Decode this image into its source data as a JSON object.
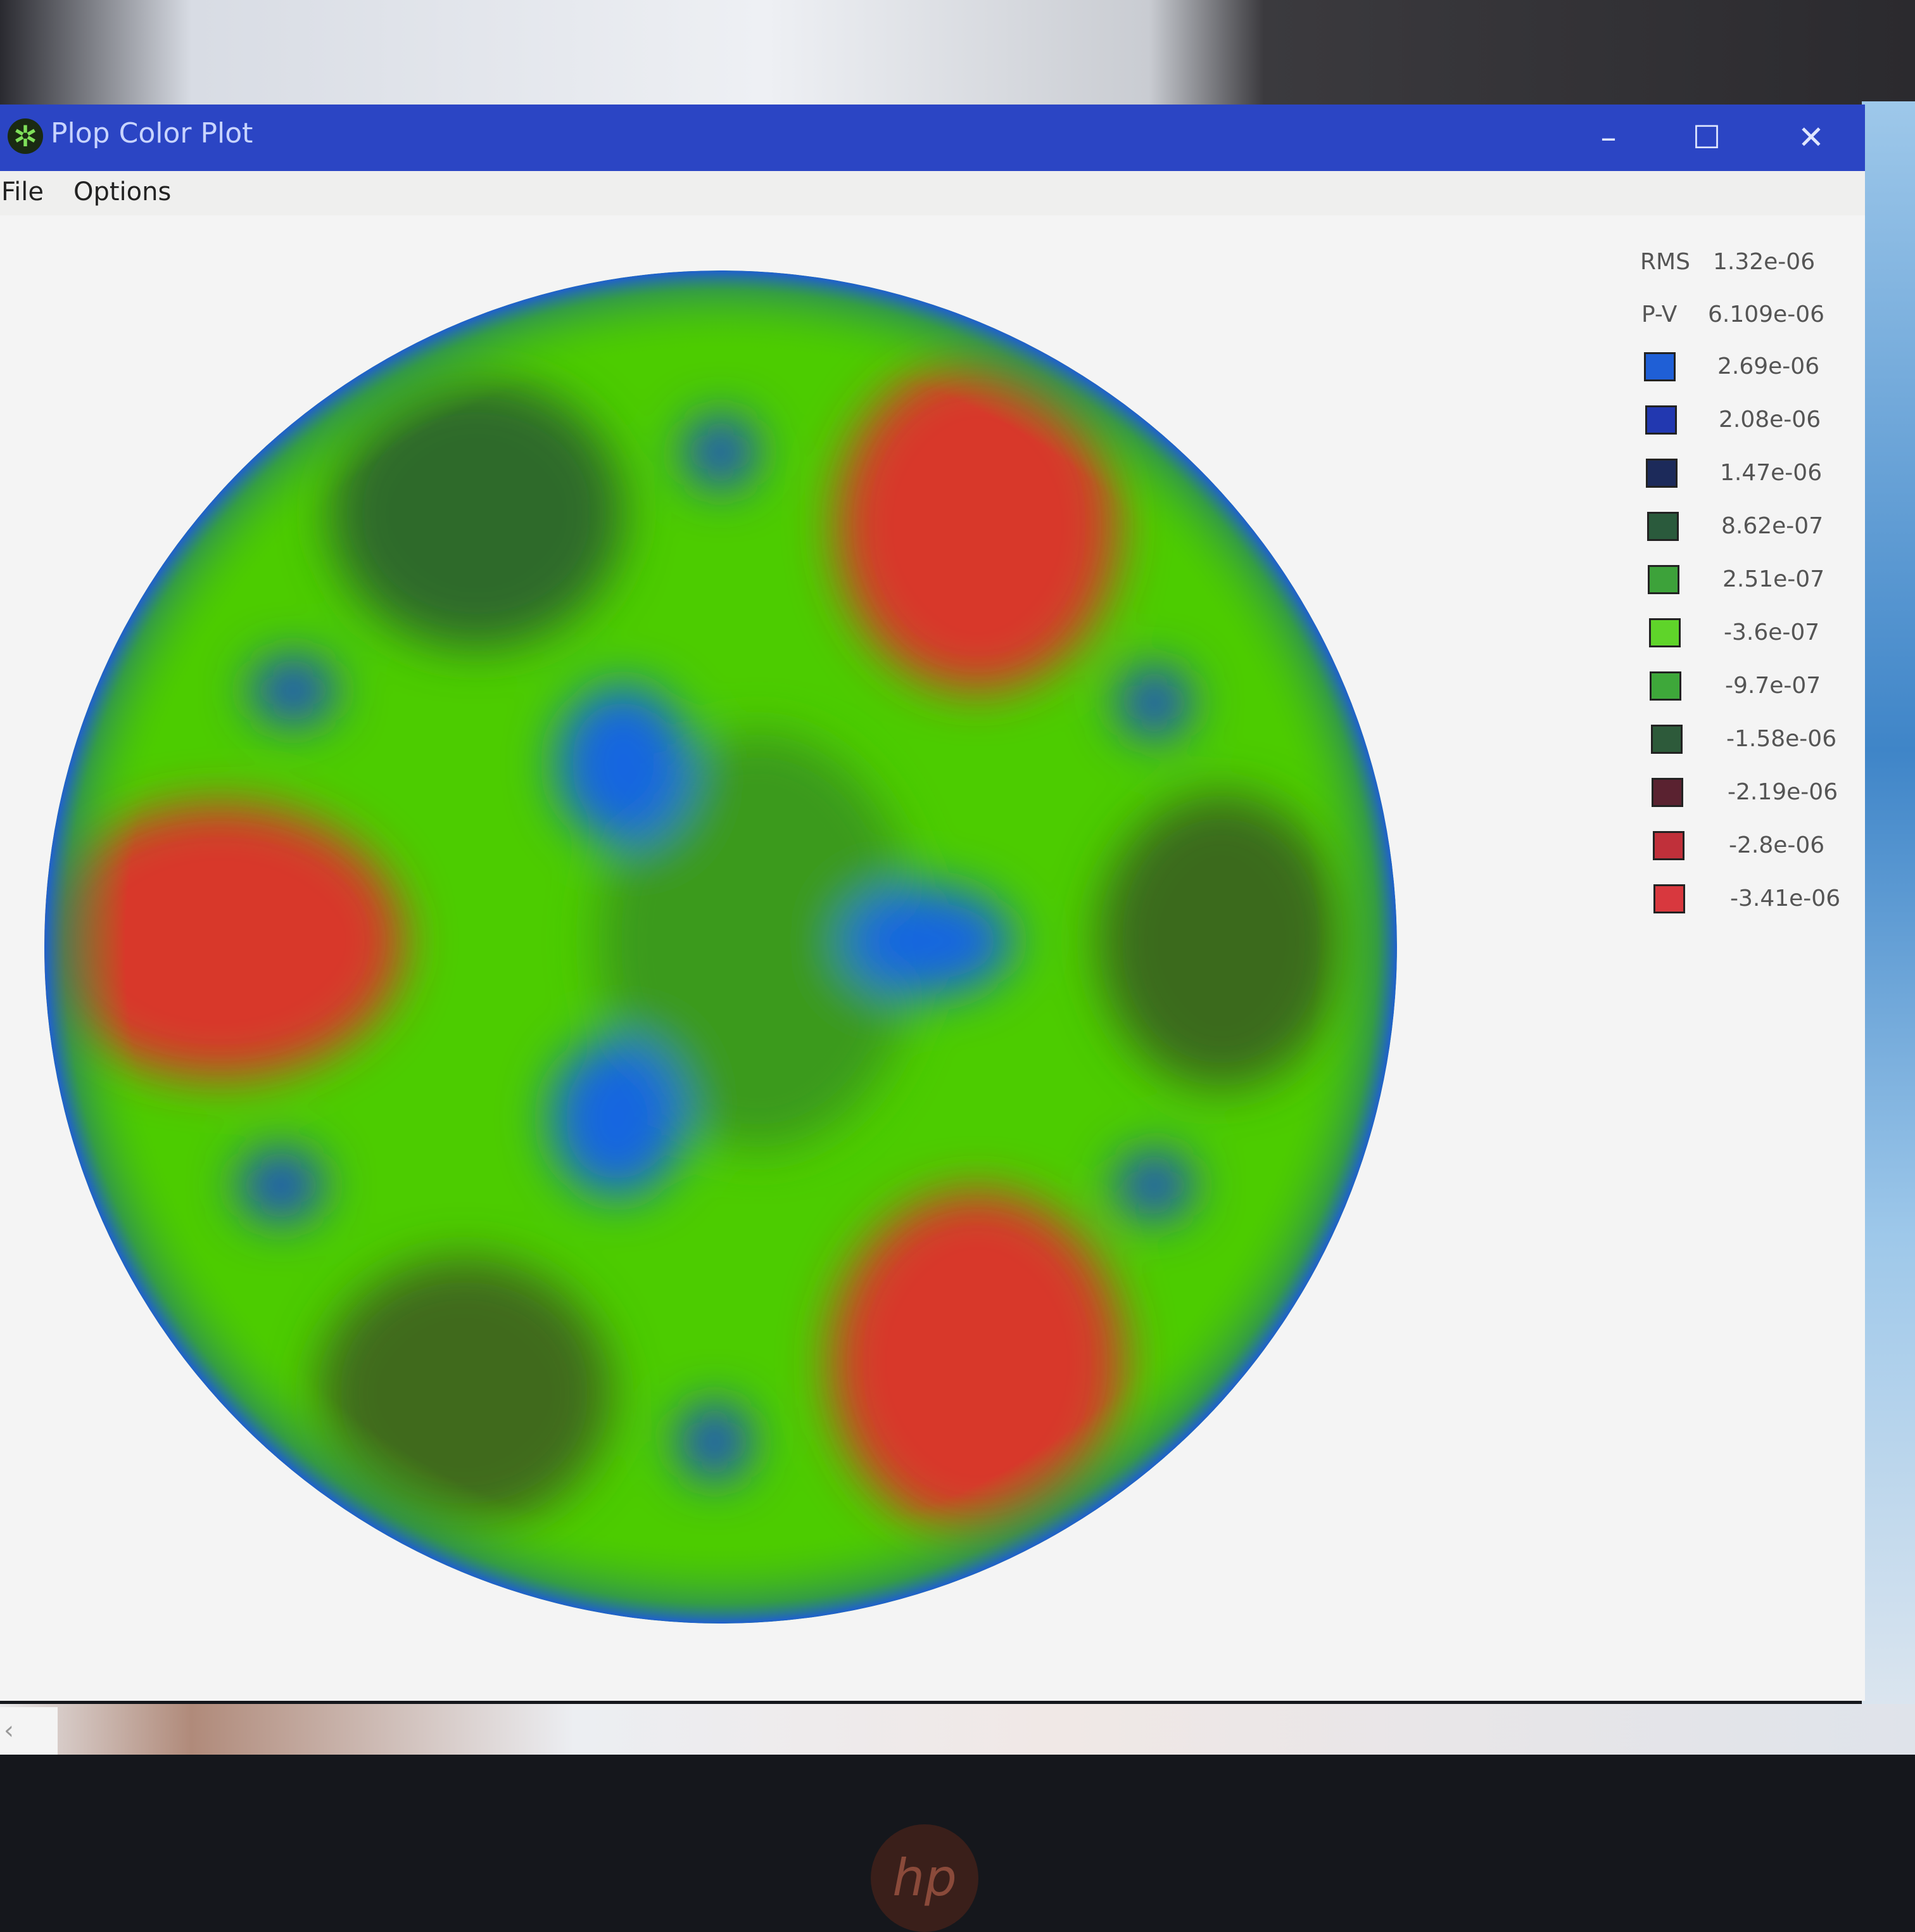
{
  "window": {
    "title": "Plop Color Plot",
    "app_icon": "plop-app-icon",
    "controls": {
      "minimize": "minimize-icon",
      "maximize": "maximize-icon",
      "close": "close-icon"
    }
  },
  "menu": {
    "items": [
      {
        "label": "File"
      },
      {
        "label": "Options"
      }
    ]
  },
  "stats": {
    "rms_label": "RMS",
    "rms_value": "1.32e-06",
    "pv_label": "P-V",
    "pv_value": "6.109e-06"
  },
  "legend": [
    {
      "value": "2.69e-06",
      "color": "#1f5fd6"
    },
    {
      "value": "2.08e-06",
      "color": "#2238b0"
    },
    {
      "value": "1.47e-06",
      "color": "#1c2a5a"
    },
    {
      "value": "8.62e-07",
      "color": "#2a5a3c"
    },
    {
      "value": "2.51e-07",
      "color": "#3da23a"
    },
    {
      "value": "-3.6e-07",
      "color": "#5fd42a"
    },
    {
      "value": "-9.7e-07",
      "color": "#3ea83a"
    },
    {
      "value": "-1.58e-06",
      "color": "#2d5a3a"
    },
    {
      "value": "-2.19e-06",
      "color": "#5a2230"
    },
    {
      "value": "-2.8e-06",
      "color": "#c0303a"
    },
    {
      "value": "-3.41e-06",
      "color": "#d8383e"
    }
  ],
  "chart_data": {
    "type": "heatmap",
    "shape": "circular aperture",
    "rms": 1.32e-06,
    "peak_to_valley": 6.109e-06,
    "color_levels": [
      2.69e-06,
      2.08e-06,
      1.47e-06,
      8.62e-07,
      2.51e-07,
      -3.6e-07,
      -9.7e-07,
      -1.58e-06,
      -2.19e-06,
      -2.8e-06,
      -3.41e-06
    ],
    "legend_placement": "right"
  }
}
